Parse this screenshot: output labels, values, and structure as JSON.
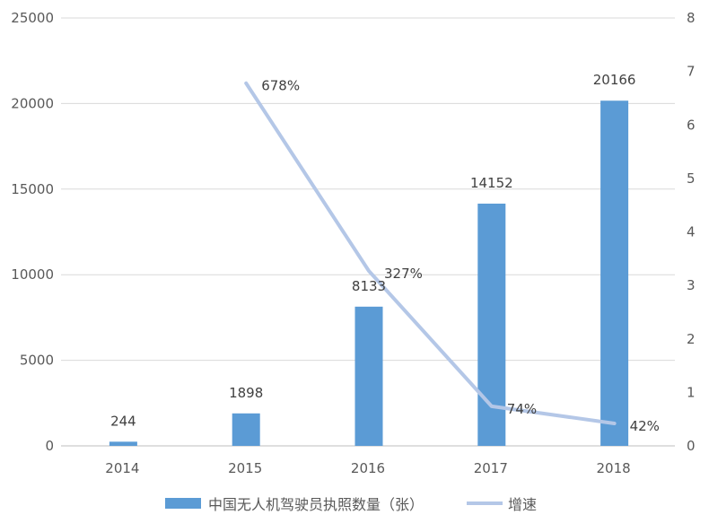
{
  "chart_data": {
    "type": "bar",
    "categories": [
      "2014",
      "2015",
      "2016",
      "2017",
      "2018"
    ],
    "series": [
      {
        "name": "中国无人机驾驶员执照数量（张）",
        "kind": "bar",
        "axis": "left",
        "color": "#5b9bd5",
        "values": [
          244,
          1898,
          8133,
          14152,
          20166
        ],
        "labels": [
          "244",
          "1898",
          "8133",
          "14152",
          "20166"
        ]
      },
      {
        "name": "增速",
        "kind": "line",
        "axis": "right",
        "color": "#b4c7e7",
        "values": [
          null,
          6.78,
          3.27,
          0.74,
          0.42
        ],
        "labels": [
          "",
          "678%",
          "327%",
          "74%",
          "42%"
        ]
      }
    ],
    "y_left": {
      "min": 0,
      "max": 25000,
      "ticks": [
        "0",
        "5000",
        "10000",
        "15000",
        "20000",
        "25000"
      ]
    },
    "y_right": {
      "min": 0,
      "max": 8,
      "ticks": [
        "0",
        "1",
        "2",
        "3",
        "4",
        "5",
        "6",
        "7",
        "8"
      ]
    },
    "grid": true,
    "legend_position": "bottom"
  }
}
